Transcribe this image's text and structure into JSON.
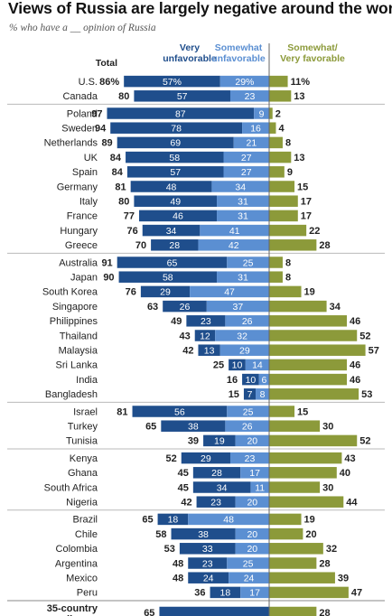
{
  "title": "Views of Russia are largely negative around the world",
  "subtitle": "% who have a __ opinion of Russia",
  "colors": {
    "very_unfavorable": "#1f4e8c",
    "somewhat_unfavorable": "#5b8fd2",
    "favorable": "#8c9a3a",
    "divider": "#b9b9b9",
    "axis": "#666666"
  },
  "chart_data": {
    "type": "bar",
    "stacked": "diverging",
    "column_headers": {
      "total": "Total",
      "very_unfavorable": "Very unfavorable",
      "somewhat_unfavorable": "Somewhat unfavorable",
      "favorable": "Somewhat/ Very favorable"
    },
    "groups": [
      {
        "rows": [
          {
            "country": "U.S.",
            "total": "86%",
            "very": "57%",
            "somewhat": "29%",
            "favorable": "11%"
          },
          {
            "country": "Canada",
            "total": "80",
            "very": "57",
            "somewhat": "23",
            "favorable": "13"
          }
        ]
      },
      {
        "rows": [
          {
            "country": "Poland",
            "total": "97",
            "very": "87",
            "somewhat": "9",
            "favorable": "2"
          },
          {
            "country": "Sweden",
            "total": "94",
            "very": "78",
            "somewhat": "16",
            "favorable": "4"
          },
          {
            "country": "Netherlands",
            "total": "89",
            "very": "69",
            "somewhat": "21",
            "favorable": "8"
          },
          {
            "country": "UK",
            "total": "84",
            "very": "58",
            "somewhat": "27",
            "favorable": "13"
          },
          {
            "country": "Spain",
            "total": "84",
            "very": "57",
            "somewhat": "27",
            "favorable": "9"
          },
          {
            "country": "Germany",
            "total": "81",
            "very": "48",
            "somewhat": "34",
            "favorable": "15"
          },
          {
            "country": "Italy",
            "total": "80",
            "very": "49",
            "somewhat": "31",
            "favorable": "17"
          },
          {
            "country": "France",
            "total": "77",
            "very": "46",
            "somewhat": "31",
            "favorable": "17"
          },
          {
            "country": "Hungary",
            "total": "76",
            "very": "34",
            "somewhat": "41",
            "favorable": "22"
          },
          {
            "country": "Greece",
            "total": "70",
            "very": "28",
            "somewhat": "42",
            "favorable": "28"
          }
        ]
      },
      {
        "rows": [
          {
            "country": "Australia",
            "total": "91",
            "very": "65",
            "somewhat": "25",
            "favorable": "8"
          },
          {
            "country": "Japan",
            "total": "90",
            "very": "58",
            "somewhat": "31",
            "favorable": "8"
          },
          {
            "country": "South Korea",
            "total": "76",
            "very": "29",
            "somewhat": "47",
            "favorable": "19"
          },
          {
            "country": "Singapore",
            "total": "63",
            "very": "26",
            "somewhat": "37",
            "favorable": "34"
          },
          {
            "country": "Philippines",
            "total": "49",
            "very": "23",
            "somewhat": "26",
            "favorable": "46"
          },
          {
            "country": "Thailand",
            "total": "43",
            "very": "12",
            "somewhat": "32",
            "favorable": "52"
          },
          {
            "country": "Malaysia",
            "total": "42",
            "very": "13",
            "somewhat": "29",
            "favorable": "57"
          },
          {
            "country": "Sri Lanka",
            "total": "25",
            "very": "10",
            "somewhat": "14",
            "favorable": "46"
          },
          {
            "country": "India",
            "total": "16",
            "very": "10",
            "somewhat": "6",
            "favorable": "46"
          },
          {
            "country": "Bangladesh",
            "total": "15",
            "very": "7",
            "somewhat": "8",
            "favorable": "53"
          }
        ]
      },
      {
        "rows": [
          {
            "country": "Israel",
            "total": "81",
            "very": "56",
            "somewhat": "25",
            "favorable": "15"
          },
          {
            "country": "Turkey",
            "total": "65",
            "very": "38",
            "somewhat": "26",
            "favorable": "30"
          },
          {
            "country": "Tunisia",
            "total": "39",
            "very": "19",
            "somewhat": "20",
            "favorable": "52"
          }
        ]
      },
      {
        "rows": [
          {
            "country": "Kenya",
            "total": "52",
            "very": "29",
            "somewhat": "23",
            "favorable": "43"
          },
          {
            "country": "Ghana",
            "total": "45",
            "very": "28",
            "somewhat": "17",
            "favorable": "40"
          },
          {
            "country": "South Africa",
            "total": "45",
            "very": "34",
            "somewhat": "11",
            "favorable": "30"
          },
          {
            "country": "Nigeria",
            "total": "42",
            "very": "23",
            "somewhat": "20",
            "favorable": "44"
          }
        ]
      },
      {
        "rows": [
          {
            "country": "Brazil",
            "total": "65",
            "very": "18",
            "somewhat": "48",
            "favorable": "19"
          },
          {
            "country": "Chile",
            "total": "58",
            "very": "38",
            "somewhat": "20",
            "favorable": "20"
          },
          {
            "country": "Colombia",
            "total": "53",
            "very": "33",
            "somewhat": "20",
            "favorable": "32"
          },
          {
            "country": "Argentina",
            "total": "48",
            "very": "23",
            "somewhat": "25",
            "favorable": "28"
          },
          {
            "country": "Mexico",
            "total": "48",
            "very": "24",
            "somewhat": "24",
            "favorable": "39"
          },
          {
            "country": "Peru",
            "total": "36",
            "very": "18",
            "somewhat": "17",
            "favorable": "47"
          }
        ]
      }
    ],
    "median": {
      "label": "35-country median",
      "total": "65",
      "favorable": "28"
    }
  }
}
